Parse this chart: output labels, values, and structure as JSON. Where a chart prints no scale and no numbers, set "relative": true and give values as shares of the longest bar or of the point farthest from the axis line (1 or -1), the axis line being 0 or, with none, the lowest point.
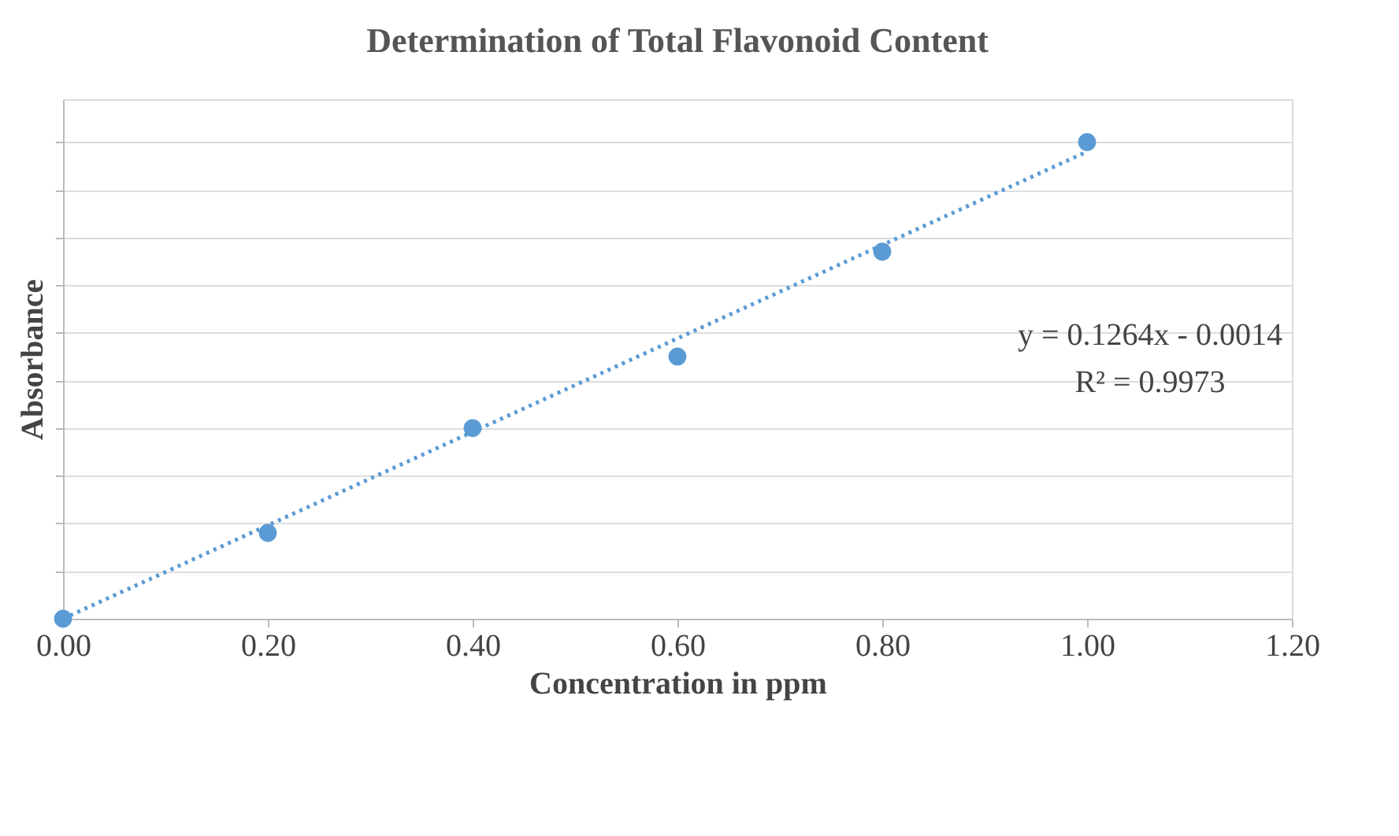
{
  "chart_data": {
    "type": "scatter",
    "title": "Determination of Total Flavonoid Content",
    "xlabel": "Concentration in ppm",
    "ylabel": "Absorbance",
    "x": [
      0,
      0.2,
      0.4,
      0.6,
      0.8,
      1.0
    ],
    "relative": true,
    "series": [
      {
        "color": "#5b9bd5",
        "marker": "circle",
        "values": [
          0,
          0.18,
          0.4,
          0.55,
          0.77,
          1
        ]
      },
      {
        "type": "line",
        "color": "#5b9bd5",
        "line_style": "dotted",
        "x": [
          0,
          1.0
        ],
        "values": [
          0,
          0.98
        ]
      }
    ],
    "xlim": [
      0,
      1.2
    ],
    "xticks": [
      {
        "value": 0,
        "label": "0.00"
      },
      {
        "value": 0.2,
        "label": "0.20"
      },
      {
        "value": 0.4,
        "label": "0.40"
      },
      {
        "value": 0.6,
        "label": "0.60"
      },
      {
        "value": 0.8,
        "label": "0.80"
      },
      {
        "value": 1.0,
        "label": "1.00"
      },
      {
        "value": 1.2,
        "label": "1.20"
      }
    ],
    "grid": "y",
    "annotations": [
      "y = 0.1264x - 0.0014",
      "R² = 0.9973"
    ]
  }
}
